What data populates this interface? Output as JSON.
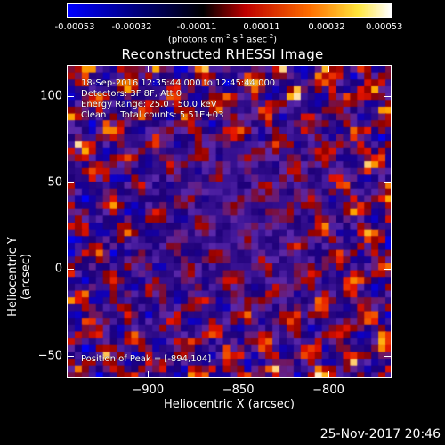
{
  "colorbar": {
    "ticks": [
      "-0.00053",
      "-0.00032",
      "-0.00011",
      "0.00011",
      "0.00032",
      "0.00053"
    ],
    "units_prefix": "(photons cm",
    "units_sup1": "-2",
    "units_mid": " s",
    "units_sup2": "-1",
    "units_mid2": " asec",
    "units_sup3": "-2",
    "units_suffix": ")"
  },
  "title": "Reconstructed RHESSI Image",
  "annotations": {
    "time": "18-Sep-2016 12:35:44.000 to 12:45:44.000",
    "detectors": "Detectors: 3F 8F, Att 0",
    "energy": "Energy Range: 25.0 - 50.0 keV",
    "clean": "Clean     Total counts: 5.51E+03",
    "peak": "Position of Peak = [-894,104]"
  },
  "chart_data": {
    "type": "heatmap",
    "title": "Reconstructed RHESSI Image",
    "xlabel": "Heliocentric X (arcsec)",
    "ylabel": "Heliocentric Y (arcsec)",
    "xlim": [
      -945,
      -765
    ],
    "ylim": [
      -63,
      118
    ],
    "x_ticks": [
      -900,
      -850,
      -800
    ],
    "y_ticks": [
      100,
      50,
      0,
      -50
    ],
    "colorbar_range": [
      -0.00053,
      0.00053
    ],
    "peak_position": [
      -894,
      104
    ]
  },
  "timestamp": "25-Nov-2017 20:46"
}
